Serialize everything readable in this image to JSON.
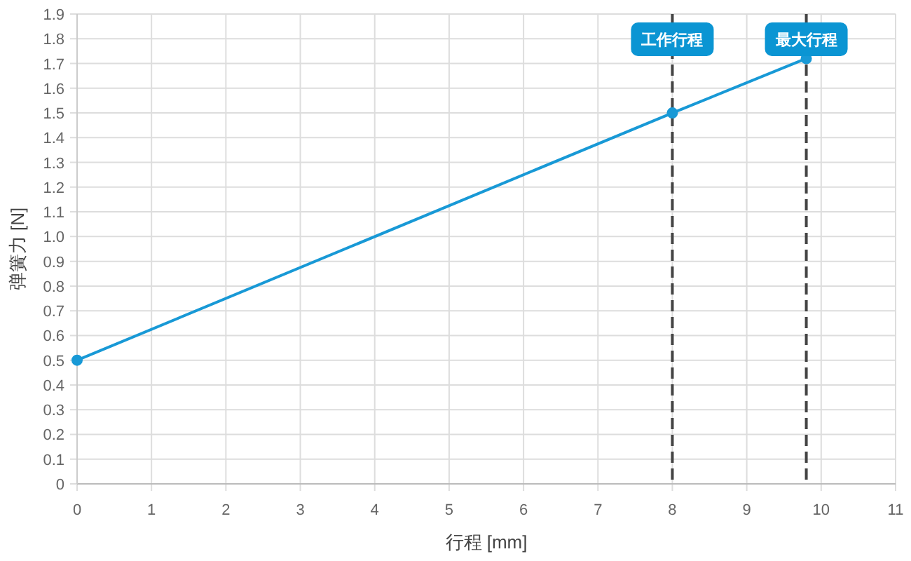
{
  "chart_data": {
    "type": "line",
    "xlabel": "行程 [mm]",
    "ylabel": "弹簧力 [N]",
    "x": [
      0,
      8,
      9.8
    ],
    "values": [
      0.5,
      1.5,
      1.72
    ],
    "color": "#1899d6",
    "xlim": [
      0,
      11
    ],
    "ylim": [
      0,
      1.9
    ],
    "xticks": [
      0,
      1,
      2,
      3,
      4,
      5,
      6,
      7,
      8,
      9,
      10,
      11
    ],
    "yticks": [
      0,
      0.1,
      0.2,
      0.3,
      0.4,
      0.5,
      0.6,
      0.7,
      0.8,
      0.9,
      {
        "value": 1,
        "label": "1.0"
      },
      1.1,
      1.2,
      1.3,
      1.4,
      1.5,
      1.6,
      1.7,
      1.8,
      1.9
    ],
    "grid": true,
    "marker": "circle",
    "ref_lines": [
      {
        "axis": "x",
        "value": 8,
        "label": "工作行程",
        "color": "#444444",
        "line_style": "dashed"
      },
      {
        "axis": "x",
        "value": 9.8,
        "label": "最大行程",
        "color": "#444444",
        "line_style": "dashed"
      }
    ]
  }
}
